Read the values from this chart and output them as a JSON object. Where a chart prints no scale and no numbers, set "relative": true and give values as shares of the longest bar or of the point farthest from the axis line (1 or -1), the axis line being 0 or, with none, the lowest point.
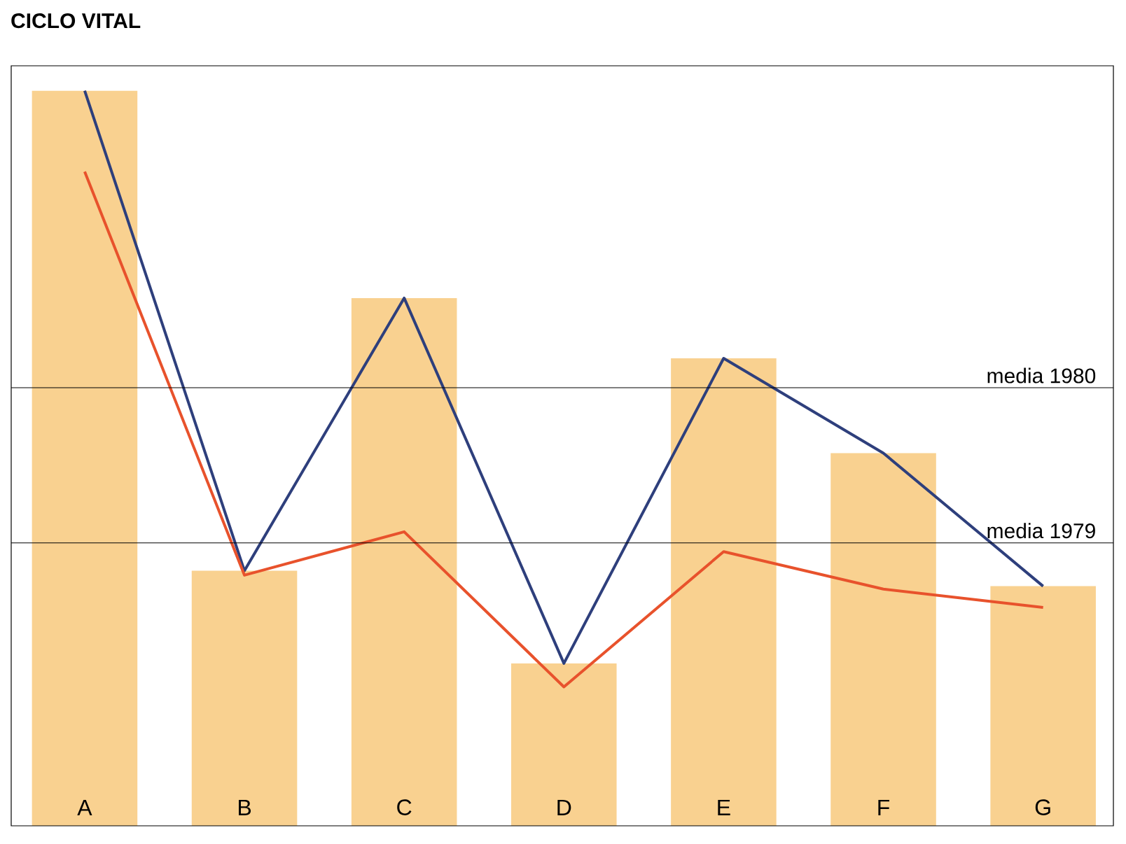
{
  "chart_data": {
    "type": "bar",
    "title": "CICLO VITAL",
    "relative": true,
    "categories": [
      "A",
      "B",
      "C",
      "D",
      "E",
      "F",
      "G"
    ],
    "series": [
      {
        "color": "#f9d190",
        "values": [
          1,
          0.347,
          0.718,
          0.221,
          0.636,
          0.507,
          0.326
        ]
      },
      {
        "type": "line",
        "color": "#2e3f7c",
        "values": [
          1,
          0.347,
          0.718,
          0.221,
          0.636,
          0.507,
          0.326
        ]
      },
      {
        "type": "line",
        "color": "#e8522c",
        "values": [
          0.89,
          0.341,
          0.4,
          0.189,
          0.373,
          0.322,
          0.297
        ]
      }
    ],
    "ref_lines": [
      {
        "axis": "y",
        "value": 0.596,
        "label": "media 1980"
      },
      {
        "axis": "y",
        "value": 0.385,
        "label": "media 1979"
      }
    ],
    "grid": false
  }
}
